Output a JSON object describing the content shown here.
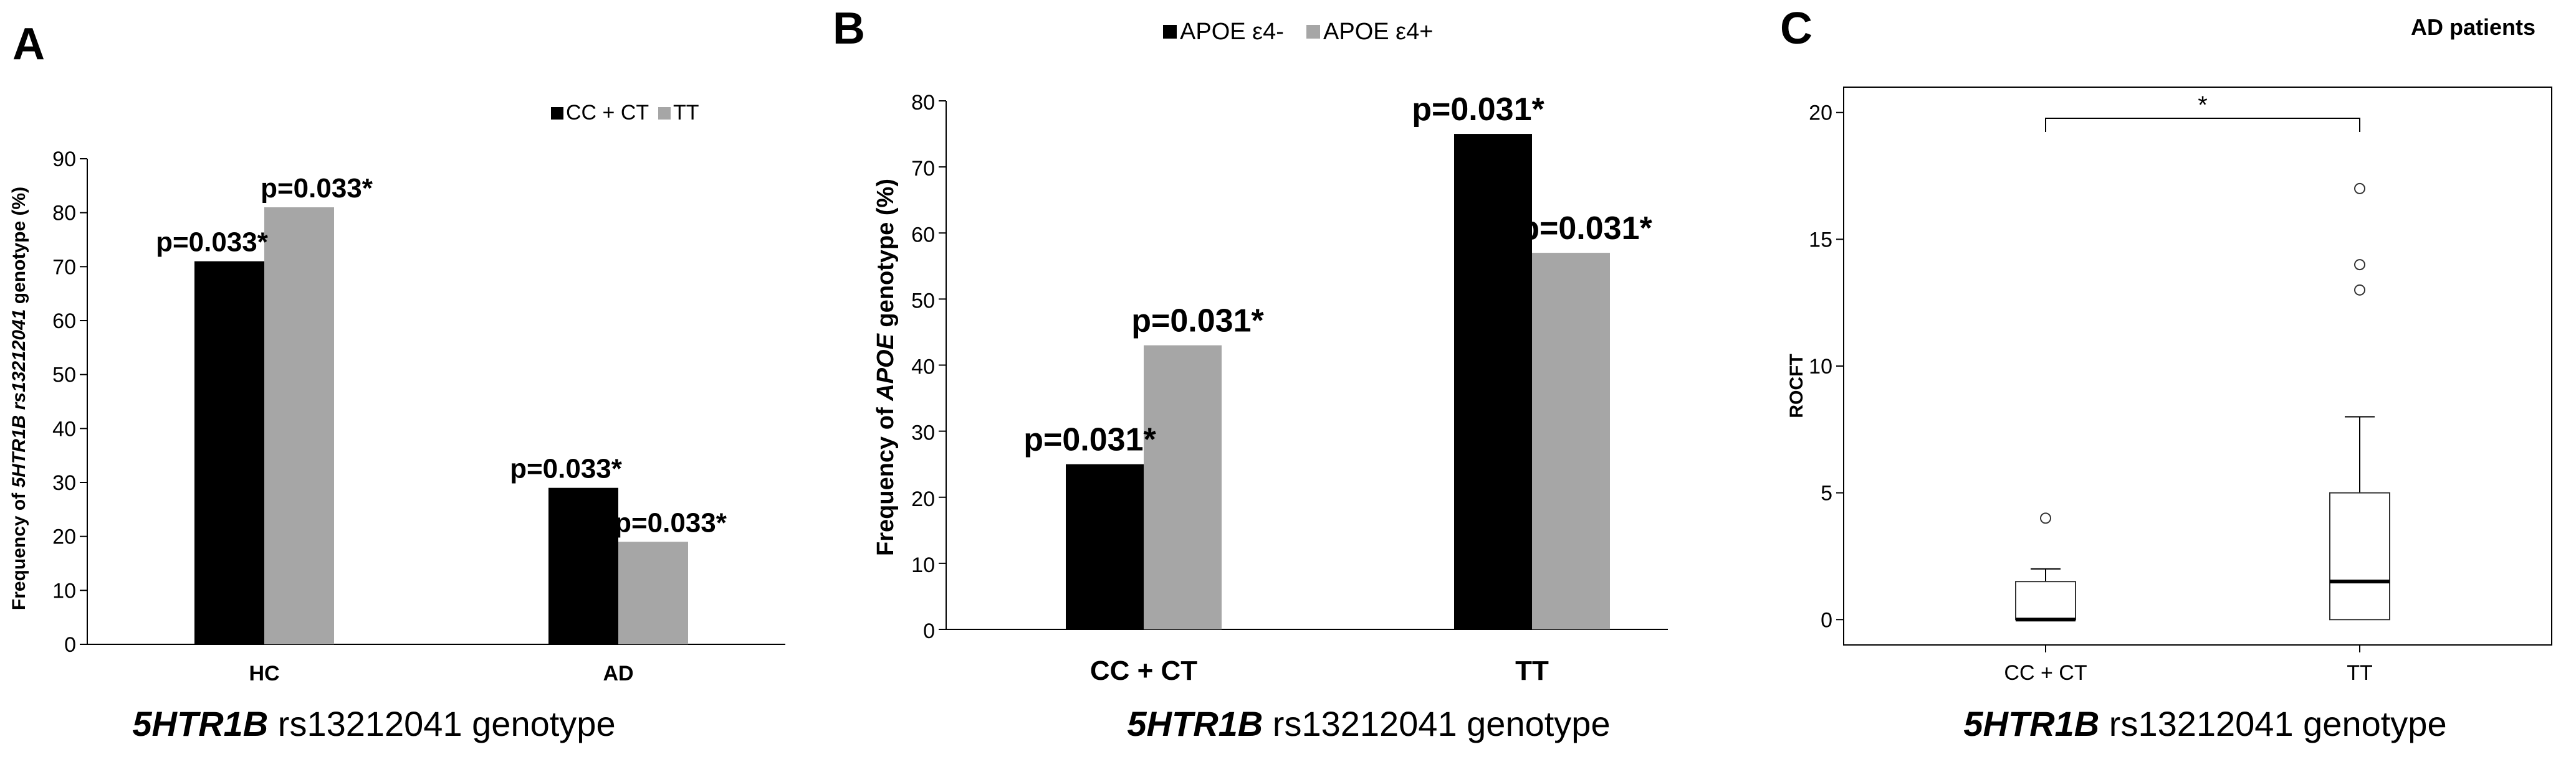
{
  "chart_data": [
    {
      "panel": "A",
      "type": "bar",
      "categories": [
        "HC",
        "AD"
      ],
      "series": [
        {
          "name": "CC + CT",
          "values": [
            71,
            29
          ],
          "labels": [
            "p=0.033*",
            "p=0.033*"
          ]
        },
        {
          "name": "TT",
          "values": [
            81,
            19
          ],
          "labels": [
            "p=0.033*",
            "p=0.033*"
          ]
        }
      ],
      "ylim": [
        0,
        90
      ],
      "yticks": [
        0,
        10,
        20,
        30,
        40,
        50,
        60,
        70,
        80,
        90
      ],
      "ylabel_parts": [
        "Frequency of ",
        "5HTR1B rs13212041",
        " genotype (%)"
      ],
      "xlabel_parts": [
        "5HTR1B",
        " rs13212041  genotype"
      ],
      "legend_position": "top-right"
    },
    {
      "panel": "B",
      "type": "bar",
      "categories": [
        "CC + CT",
        "TT"
      ],
      "series": [
        {
          "name": "APOE ε4-",
          "values": [
            25,
            75
          ],
          "labels": [
            "p=0.031*",
            "p=0.031*"
          ]
        },
        {
          "name": "APOE ε4+",
          "values": [
            43,
            57
          ],
          "labels": [
            "p=0.031*",
            "p=0.031*"
          ]
        }
      ],
      "ylim": [
        0,
        80
      ],
      "yticks": [
        0,
        10,
        20,
        30,
        40,
        50,
        60,
        70,
        80
      ],
      "ylabel_parts": [
        "Frequency of ",
        "APOE",
        " genotype (%)"
      ],
      "xlabel_parts": [
        "5HTR1B",
        " rs13212041  genotype"
      ],
      "legend_position": "top"
    },
    {
      "panel": "C",
      "type": "box",
      "title": "AD patients",
      "categories": [
        "CC + CT",
        "TT"
      ],
      "boxes": [
        {
          "min": 0,
          "q1": 0,
          "median": 0,
          "q3": 1.5,
          "max": 2,
          "outliers": [
            4
          ]
        },
        {
          "min": 0,
          "q1": 0,
          "median": 1.5,
          "q3": 5,
          "max": 8,
          "outliers": [
            13,
            14,
            17
          ]
        }
      ],
      "ylim": [
        -1,
        21
      ],
      "yticks": [
        0,
        5,
        10,
        15,
        20
      ],
      "ylabel": "ROCFT",
      "xlabel_parts": [
        "5HTR1B",
        " rs13212041  genotype"
      ],
      "significance": {
        "from": 0,
        "to": 1,
        "label": "*"
      }
    }
  ],
  "colors": {
    "series1": "#000000",
    "series2": "#a6a6a6",
    "axis": "#000000",
    "box_border": "#333333"
  }
}
